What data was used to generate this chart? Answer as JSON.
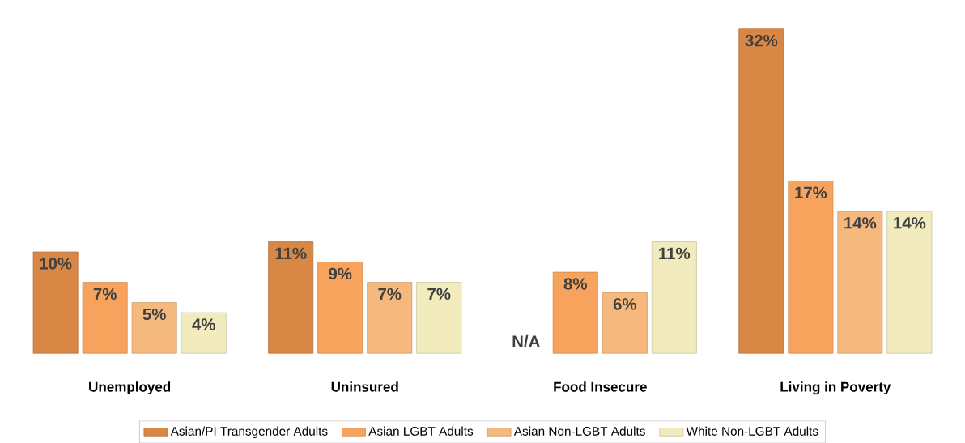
{
  "chart_data": {
    "type": "bar",
    "categories": [
      "Unemployed",
      "Uninsured",
      "Food Insecure",
      "Living in Poverty"
    ],
    "series": [
      {
        "name": "Asian/PI Transgender Adults",
        "color": "#d98745",
        "values": [
          10,
          11,
          null,
          32
        ],
        "value_labels": [
          "10%",
          "11%",
          "N/A",
          "32%"
        ]
      },
      {
        "name": "Asian LGBT Adults",
        "color": "#f7a35e",
        "values": [
          7,
          9,
          8,
          17
        ],
        "value_labels": [
          "7%",
          "9%",
          "8%",
          "17%"
        ]
      },
      {
        "name": "Asian Non-LGBT Adults",
        "color": "#f5b97e",
        "values": [
          5,
          7,
          6,
          14
        ],
        "value_labels": [
          "5%",
          "7%",
          "6%",
          "14%"
        ]
      },
      {
        "name": "White Non-LGBT Adults",
        "color": "#f1ebbd",
        "values": [
          4,
          7,
          11,
          14
        ],
        "value_labels": [
          "4%",
          "7%",
          "11%",
          "14%"
        ]
      }
    ],
    "legend": "bottom"
  }
}
